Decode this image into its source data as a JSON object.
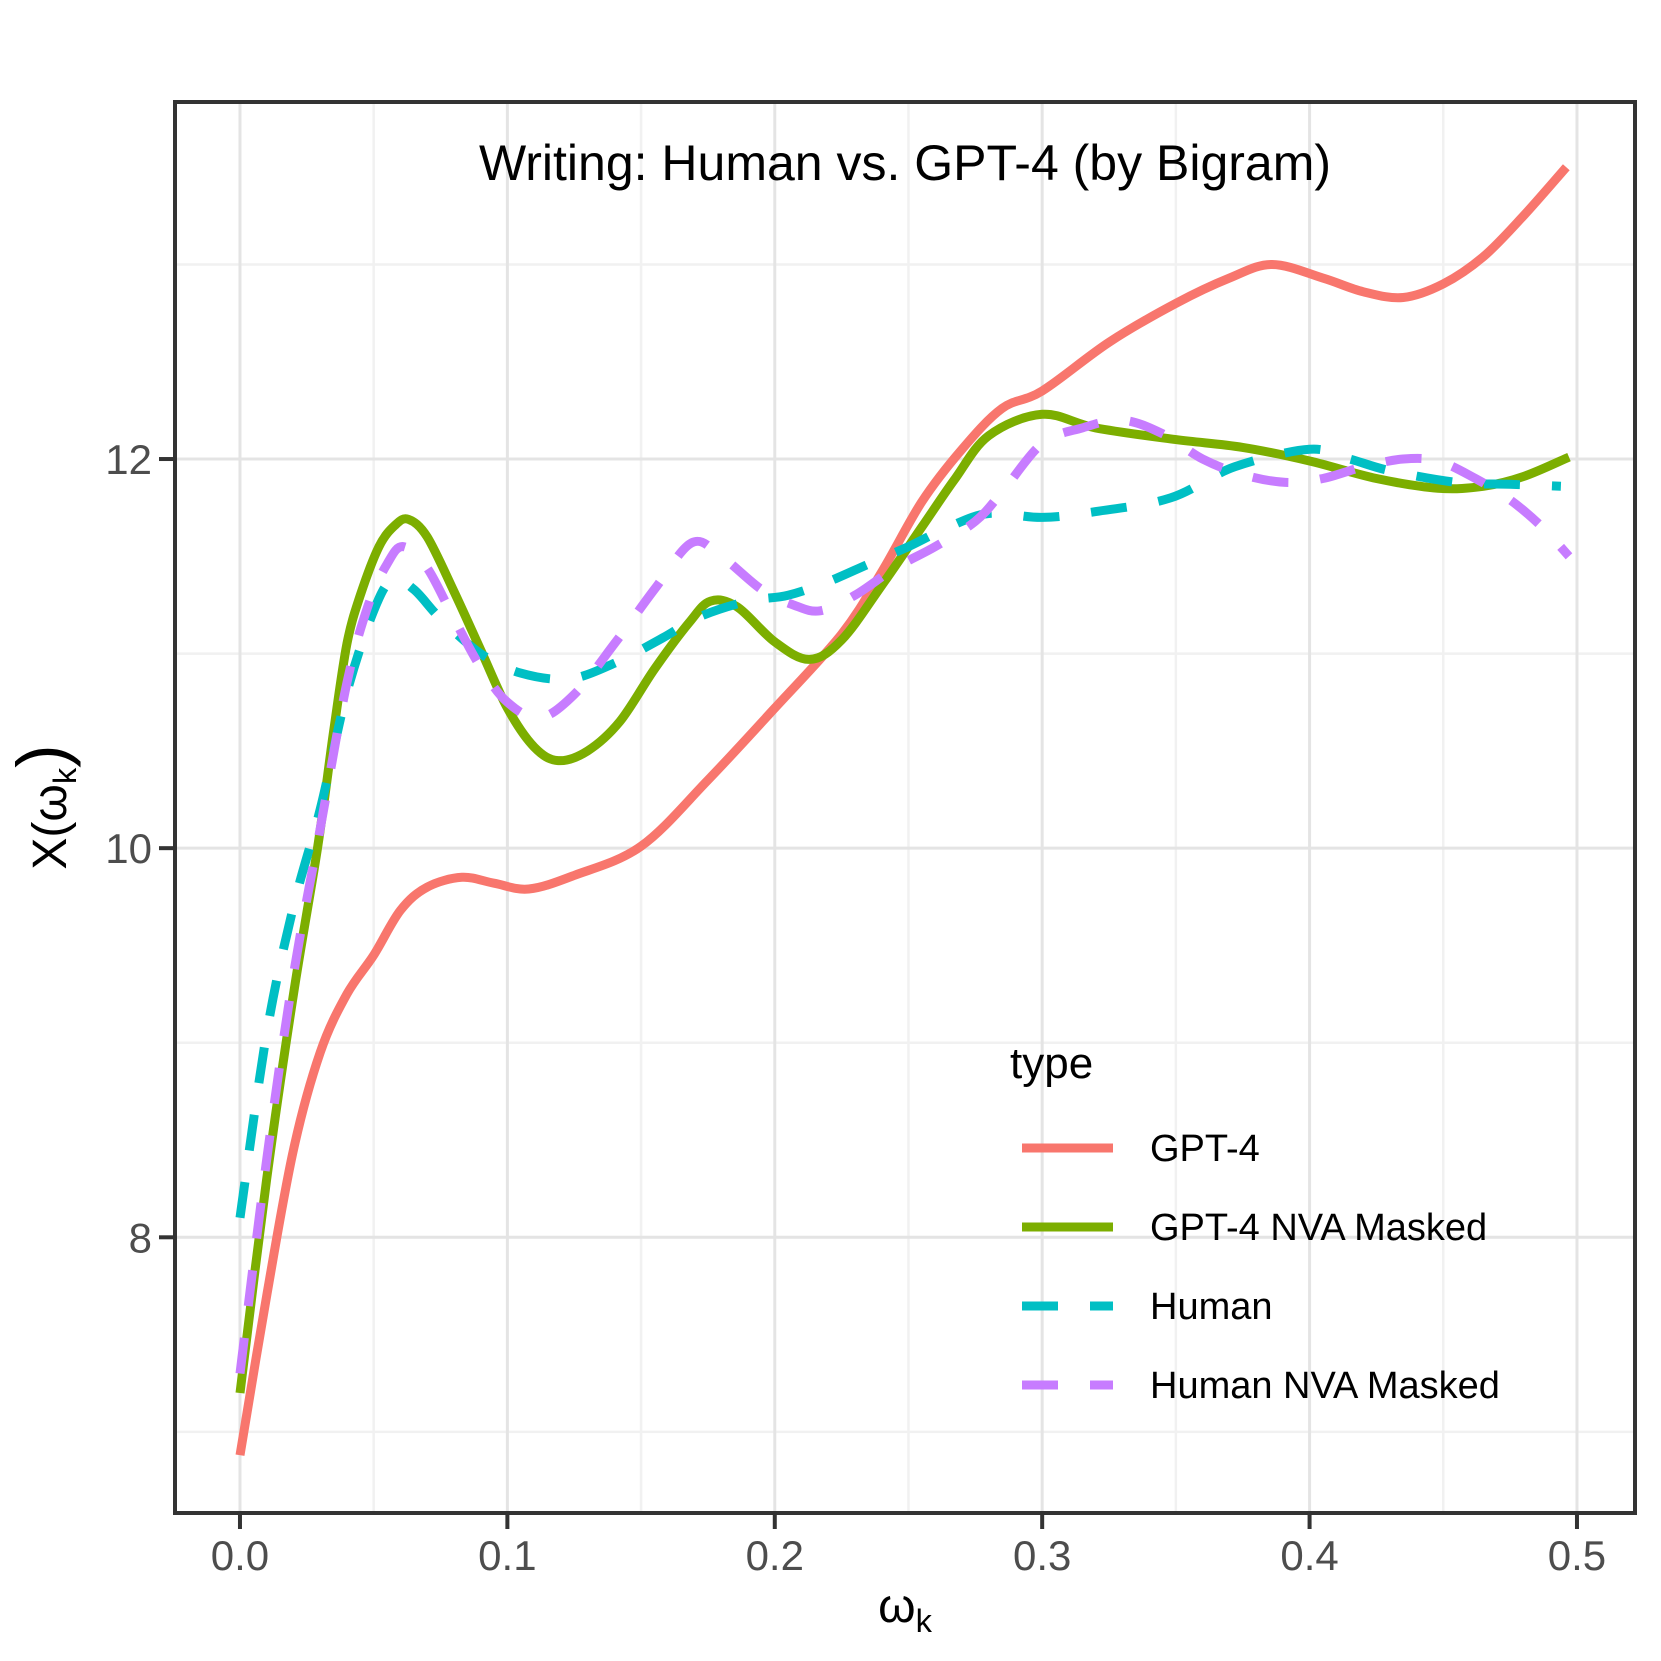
{
  "chart_data": {
    "type": "line",
    "title": "Writing: Human vs. GPT-4 (by Bigram)",
    "xlabel": "ω_k",
    "ylabel": "X(ω_k)",
    "grid": true,
    "xlim": [
      -0.0243,
      0.5217
    ],
    "ylim": [
      6.583,
      13.835
    ],
    "x_major_ticks": [
      0.0,
      0.1,
      0.2,
      0.3,
      0.4,
      0.5
    ],
    "x_tick_labels": [
      "0.0",
      "0.1",
      "0.2",
      "0.3",
      "0.4",
      "0.5"
    ],
    "x_minor_ticks": [
      0.05,
      0.15,
      0.25,
      0.35,
      0.45
    ],
    "y_major_ticks": [
      8,
      10,
      12
    ],
    "y_tick_labels": [
      "8",
      "10",
      "12"
    ],
    "y_minor_ticks": [
      7,
      9,
      11,
      13
    ],
    "legend": {
      "title": "type",
      "position": "inside bottom-right"
    },
    "colors": {
      "gpt4": "#F8766D",
      "gpt4_nva_masked": "#7CAE00",
      "human": "#00BFC4",
      "human_nva_masked": "#C77CFF",
      "grid_major": "#E4E4E4",
      "grid_minor": "#F1F1F1",
      "panel_border": "#333333",
      "tick_label": "#4d4d4d"
    },
    "series": [
      {
        "name": "GPT-4",
        "color": "#F8766D",
        "dash": null,
        "points": [
          [
            0,
            6.88
          ],
          [
            0.01,
            7.7
          ],
          [
            0.02,
            8.45
          ],
          [
            0.03,
            8.95
          ],
          [
            0.04,
            9.25
          ],
          [
            0.05,
            9.45
          ],
          [
            0.06,
            9.68
          ],
          [
            0.07,
            9.8
          ],
          [
            0.083,
            9.85
          ],
          [
            0.095,
            9.82
          ],
          [
            0.108,
            9.79
          ],
          [
            0.125,
            9.86
          ],
          [
            0.15,
            10.01
          ],
          [
            0.175,
            10.35
          ],
          [
            0.2,
            10.72
          ],
          [
            0.225,
            11.1
          ],
          [
            0.24,
            11.42
          ],
          [
            0.255,
            11.78
          ],
          [
            0.27,
            12.05
          ],
          [
            0.285,
            12.26
          ],
          [
            0.3,
            12.35
          ],
          [
            0.325,
            12.6
          ],
          [
            0.35,
            12.8
          ],
          [
            0.37,
            12.93
          ],
          [
            0.386,
            13
          ],
          [
            0.405,
            12.93
          ],
          [
            0.42,
            12.86
          ],
          [
            0.435,
            12.83
          ],
          [
            0.45,
            12.9
          ],
          [
            0.465,
            13.04
          ],
          [
            0.48,
            13.25
          ],
          [
            0.496,
            13.5
          ]
        ]
      },
      {
        "name": "GPT-4 NVA Masked",
        "color": "#7CAE00",
        "dash": null,
        "points": [
          [
            0,
            7.2
          ],
          [
            0.01,
            8.3
          ],
          [
            0.02,
            9.25
          ],
          [
            0.029,
            10
          ],
          [
            0.035,
            10.6
          ],
          [
            0.04,
            11.05
          ],
          [
            0.045,
            11.3
          ],
          [
            0.052,
            11.55
          ],
          [
            0.058,
            11.66
          ],
          [
            0.063,
            11.69
          ],
          [
            0.07,
            11.6
          ],
          [
            0.08,
            11.32
          ],
          [
            0.09,
            11.02
          ],
          [
            0.1,
            10.72
          ],
          [
            0.11,
            10.52
          ],
          [
            0.119,
            10.45
          ],
          [
            0.13,
            10.5
          ],
          [
            0.142,
            10.65
          ],
          [
            0.155,
            10.92
          ],
          [
            0.168,
            11.16
          ],
          [
            0.176,
            11.27
          ],
          [
            0.186,
            11.24
          ],
          [
            0.2,
            11.06
          ],
          [
            0.213,
            10.97
          ],
          [
            0.225,
            11.07
          ],
          [
            0.24,
            11.35
          ],
          [
            0.255,
            11.65
          ],
          [
            0.267,
            11.89
          ],
          [
            0.28,
            12.12
          ],
          [
            0.3,
            12.23
          ],
          [
            0.32,
            12.16
          ],
          [
            0.35,
            12.1
          ],
          [
            0.375,
            12.06
          ],
          [
            0.4,
            11.99
          ],
          [
            0.425,
            11.9
          ],
          [
            0.448,
            11.85
          ],
          [
            0.465,
            11.86
          ],
          [
            0.48,
            11.91
          ],
          [
            0.497,
            12.01
          ]
        ]
      },
      {
        "name": "Human",
        "color": "#00BFC4",
        "dash": [
          36,
          32
        ],
        "points": [
          [
            0,
            8.1
          ],
          [
            0.01,
            9.05
          ],
          [
            0.02,
            9.7
          ],
          [
            0.03,
            10.2
          ],
          [
            0.04,
            10.8
          ],
          [
            0.05,
            11.22
          ],
          [
            0.057,
            11.38
          ],
          [
            0.065,
            11.33
          ],
          [
            0.075,
            11.18
          ],
          [
            0.09,
            11
          ],
          [
            0.105,
            10.9
          ],
          [
            0.123,
            10.87
          ],
          [
            0.14,
            10.95
          ],
          [
            0.158,
            11.08
          ],
          [
            0.172,
            11.19
          ],
          [
            0.19,
            11.27
          ],
          [
            0.205,
            11.3
          ],
          [
            0.22,
            11.37
          ],
          [
            0.235,
            11.46
          ],
          [
            0.25,
            11.55
          ],
          [
            0.265,
            11.65
          ],
          [
            0.28,
            11.72
          ],
          [
            0.3,
            11.7
          ],
          [
            0.32,
            11.73
          ],
          [
            0.348,
            11.8
          ],
          [
            0.372,
            11.96
          ],
          [
            0.4,
            12.05
          ],
          [
            0.415,
            12
          ],
          [
            0.43,
            11.94
          ],
          [
            0.455,
            11.88
          ],
          [
            0.475,
            11.87
          ],
          [
            0.494,
            11.86
          ]
        ]
      },
      {
        "name": "Human NVA Masked",
        "color": "#C77CFF",
        "dash": [
          36,
          32
        ],
        "points": [
          [
            0,
            7.3
          ],
          [
            0.01,
            8.4
          ],
          [
            0.02,
            9.35
          ],
          [
            0.03,
            10.1
          ],
          [
            0.04,
            10.85
          ],
          [
            0.048,
            11.25
          ],
          [
            0.055,
            11.46
          ],
          [
            0.061,
            11.55
          ],
          [
            0.07,
            11.44
          ],
          [
            0.08,
            11.18
          ],
          [
            0.09,
            10.93
          ],
          [
            0.1,
            10.75
          ],
          [
            0.112,
            10.67
          ],
          [
            0.125,
            10.79
          ],
          [
            0.14,
            11.05
          ],
          [
            0.155,
            11.33
          ],
          [
            0.169,
            11.57
          ],
          [
            0.18,
            11.5
          ],
          [
            0.195,
            11.33
          ],
          [
            0.207,
            11.25
          ],
          [
            0.217,
            11.22
          ],
          [
            0.23,
            11.3
          ],
          [
            0.245,
            11.44
          ],
          [
            0.26,
            11.55
          ],
          [
            0.275,
            11.68
          ],
          [
            0.285,
            11.83
          ],
          [
            0.3,
            12.08
          ],
          [
            0.315,
            12.16
          ],
          [
            0.33,
            12.2
          ],
          [
            0.345,
            12.13
          ],
          [
            0.36,
            12
          ],
          [
            0.375,
            11.92
          ],
          [
            0.391,
            11.88
          ],
          [
            0.405,
            11.9
          ],
          [
            0.42,
            11.96
          ],
          [
            0.435,
            12
          ],
          [
            0.448,
            11.99
          ],
          [
            0.462,
            11.9
          ],
          [
            0.475,
            11.79
          ],
          [
            0.487,
            11.65
          ],
          [
            0.497,
            11.5
          ]
        ]
      }
    ]
  }
}
